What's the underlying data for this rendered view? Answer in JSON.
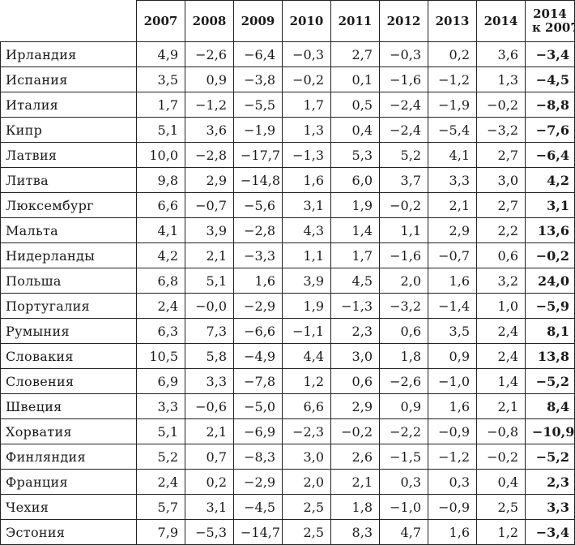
{
  "table": {
    "columns": [
      "2007",
      "2008",
      "2009",
      "2010",
      "2011",
      "2012",
      "2013",
      "2014"
    ],
    "total_header": [
      "2014",
      "к 2007"
    ],
    "rows": [
      {
        "country": "Ирландия",
        "values": [
          "4,9",
          "−2,6",
          "−6,4",
          "−0,3",
          "2,7",
          "−0,3",
          "0,2",
          "3,6"
        ],
        "total": "−3,4"
      },
      {
        "country": "Испания",
        "values": [
          "3,5",
          "0,9",
          "−3,8",
          "−0,2",
          "0,1",
          "−1,6",
          "−1,2",
          "1,3"
        ],
        "total": "−4,5"
      },
      {
        "country": "Италия",
        "values": [
          "1,7",
          "−1,2",
          "−5,5",
          "1,7",
          "0,5",
          "−2,4",
          "−1,9",
          "−0,2"
        ],
        "total": "−8,8"
      },
      {
        "country": "Кипр",
        "values": [
          "5,1",
          "3,6",
          "−1,9",
          "1,3",
          "0,4",
          "−2,4",
          "−5,4",
          "−3,2"
        ],
        "total": "−7,6"
      },
      {
        "country": "Латвия",
        "values": [
          "10,0",
          "−2,8",
          "−17,7",
          "−1,3",
          "5,3",
          "5,2",
          "4,1",
          "2,7"
        ],
        "total": "−6,4"
      },
      {
        "country": "Литва",
        "values": [
          "9,8",
          "2,9",
          "−14,8",
          "1,6",
          "6,0",
          "3,7",
          "3,3",
          "3,0"
        ],
        "total": "4,2"
      },
      {
        "country": "Люксембург",
        "values": [
          "6,6",
          "−0,7",
          "−5,6",
          "3,1",
          "1,9",
          "−0,2",
          "2,1",
          "2,7"
        ],
        "total": "3,1"
      },
      {
        "country": "Мальта",
        "values": [
          "4,1",
          "3,9",
          "−2,8",
          "4,3",
          "1,4",
          "1,1",
          "2,9",
          "2,2"
        ],
        "total": "13,6"
      },
      {
        "country": "Нидерланды",
        "values": [
          "4,2",
          "2,1",
          "−3,3",
          "1,1",
          "1,7",
          "−1,6",
          "−0,7",
          "0,6"
        ],
        "total": "−0,2"
      },
      {
        "country": "Польша",
        "values": [
          "6,8",
          "5,1",
          "1,6",
          "3,9",
          "4,5",
          "2,0",
          "1,6",
          "3,2"
        ],
        "total": "24,0"
      },
      {
        "country": "Португалия",
        "values": [
          "2,4",
          "−0,0",
          "−2,9",
          "1,9",
          "−1,3",
          "−3,2",
          "−1,4",
          "1,0"
        ],
        "total": "−5,9"
      },
      {
        "country": "Румыния",
        "values": [
          "6,3",
          "7,3",
          "−6,6",
          "−1,1",
          "2,3",
          "0,6",
          "3,5",
          "2,4"
        ],
        "total": "8,1"
      },
      {
        "country": "Словакия",
        "values": [
          "10,5",
          "5,8",
          "−4,9",
          "4,4",
          "3,0",
          "1,8",
          "0,9",
          "2,4"
        ],
        "total": "13,8"
      },
      {
        "country": "Словения",
        "values": [
          "6,9",
          "3,3",
          "−7,8",
          "1,2",
          "0,6",
          "−2,6",
          "−1,0",
          "1,4"
        ],
        "total": "−5,2"
      },
      {
        "country": "Швеция",
        "values": [
          "3,3",
          "−0,6",
          "−5,0",
          "6,6",
          "2,9",
          "0,9",
          "1,6",
          "2,1"
        ],
        "total": "8,4"
      },
      {
        "country": "Хорватия",
        "values": [
          "5,1",
          "2,1",
          "−6,9",
          "−2,3",
          "−0,2",
          "−2,2",
          "−0,9",
          "−0,8"
        ],
        "total": "−10,9"
      },
      {
        "country": "Финляндия",
        "values": [
          "5,2",
          "0,7",
          "−8,3",
          "3,0",
          "2,6",
          "−1,5",
          "−1,2",
          "−0,2"
        ],
        "total": "−5,2"
      },
      {
        "country": "Франция",
        "values": [
          "2,4",
          "0,2",
          "−2,9",
          "2,0",
          "2,1",
          "0,3",
          "0,3",
          "0,4"
        ],
        "total": "2,3"
      },
      {
        "country": "Чехия",
        "values": [
          "5,7",
          "3,1",
          "−4,5",
          "2,5",
          "1,8",
          "−1,0",
          "−0,9",
          "2,5"
        ],
        "total": "3,3"
      },
      {
        "country": "Эстония",
        "values": [
          "7,9",
          "−5,3",
          "−14,7",
          "2,5",
          "8,3",
          "4,7",
          "1,6",
          "1,2"
        ],
        "total": "−3,4"
      }
    ]
  }
}
